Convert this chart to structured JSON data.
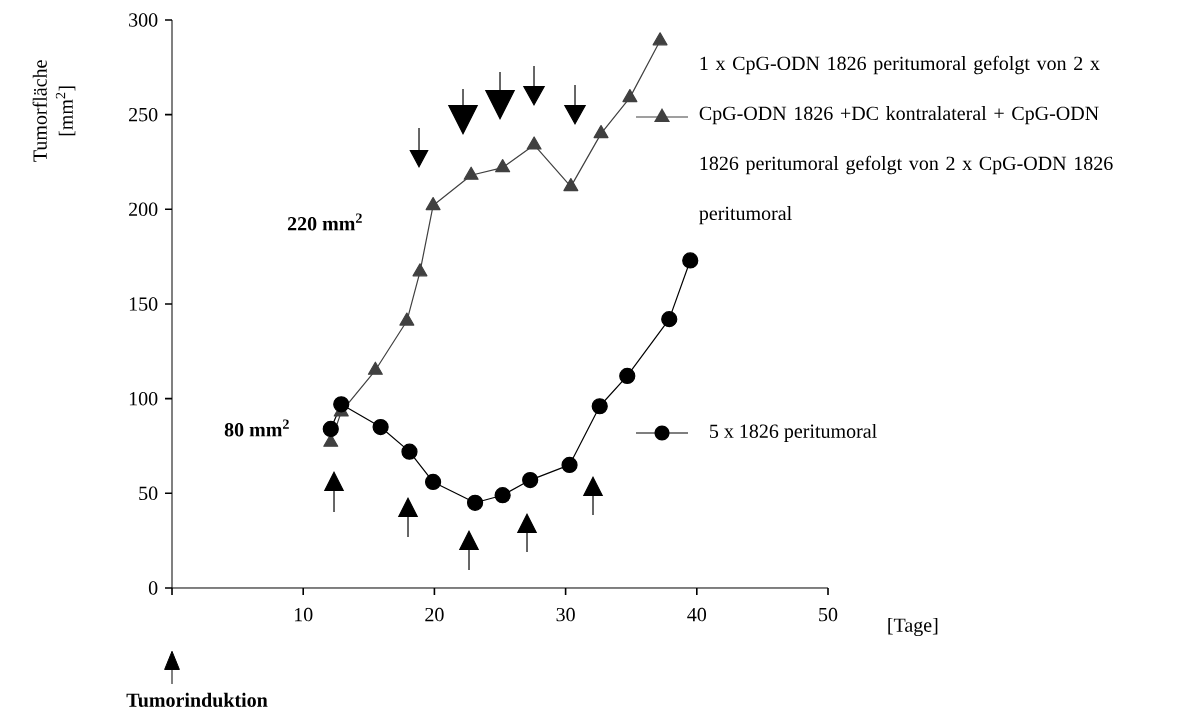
{
  "chart_data": {
    "type": "line",
    "xlabel": "[Tage]",
    "ylabel": "Tumorfläche [mm$^{2}$]",
    "xlim": [
      0,
      50
    ],
    "xticks": [
      {
        "value": 0,
        "label": null
      },
      10,
      20,
      30,
      40,
      50
    ],
    "ylim": [
      0,
      300
    ],
    "yticks": [
      0,
      50,
      100,
      150,
      200,
      250,
      300
    ],
    "grid": false,
    "legend": "right",
    "line_style": "solid",
    "annotations": [
      "220 mm$^{2}$",
      "80 mm$^{2}$",
      "Tumorinduktion"
    ],
    "series": [
      {
        "name": "1 x CpG-ODN 1826 peritumoral gefolgt von 2 x CpG-ODN 1826 +DC kontralateral + CpG-ODN 1826 peritumoral gefolgt von 2 x CpG-ODN 1826 peritumoral",
        "color": "#404040",
        "marker": "triangle",
        "x": [
          12.1,
          12.9,
          15.5,
          17.9,
          18.9,
          19.9,
          22.8,
          25.2,
          27.6,
          30.4,
          32.7,
          34.9,
          37.2
        ],
        "values": [
          77,
          93,
          115,
          141,
          167,
          202,
          218,
          222,
          234,
          212,
          240,
          259,
          289
        ]
      },
      {
        "name": "5 x 1826 peritumoral",
        "color": "#000000",
        "marker": "circle",
        "x": [
          12.1,
          12.9,
          15.9,
          18.1,
          19.9,
          23.1,
          25.2,
          27.3,
          30.3,
          32.6,
          34.7,
          37.9,
          39.5
        ],
        "values": [
          84,
          97,
          85,
          72,
          56,
          45,
          49,
          57,
          65,
          96,
          112,
          142,
          173
        ]
      }
    ]
  }
}
